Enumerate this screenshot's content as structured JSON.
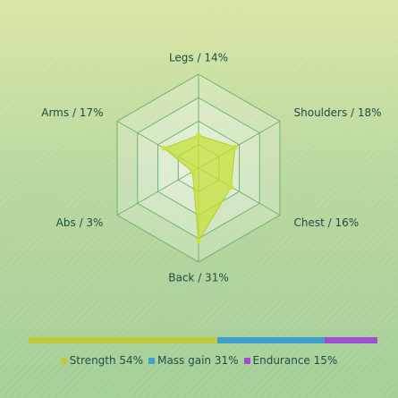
{
  "chart_data": {
    "type": "radar",
    "title": "",
    "axes": [
      {
        "label": "Legs / 14%",
        "value": 14
      },
      {
        "label": "Shoulders / 18%",
        "value": 18
      },
      {
        "label": "Chest / 16%",
        "value": 16
      },
      {
        "label": "Back / 31%",
        "value": 31
      },
      {
        "label": "Abs / 3%",
        "value": 3
      },
      {
        "label": "Arms / 17%",
        "value": 17
      }
    ],
    "rmax": 40,
    "rings": 4,
    "series_color": "#c5e03a",
    "grid_color": "#6fb36f",
    "breakdown": [
      {
        "label": "Strength 54%",
        "value": 54,
        "color": "#c4c93a"
      },
      {
        "label": "Mass gain 31%",
        "value": 31,
        "color": "#3f9fd1"
      },
      {
        "label": "Endurance 15%",
        "value": 15,
        "color": "#a04fcf"
      }
    ],
    "legend_position": "bottom"
  }
}
